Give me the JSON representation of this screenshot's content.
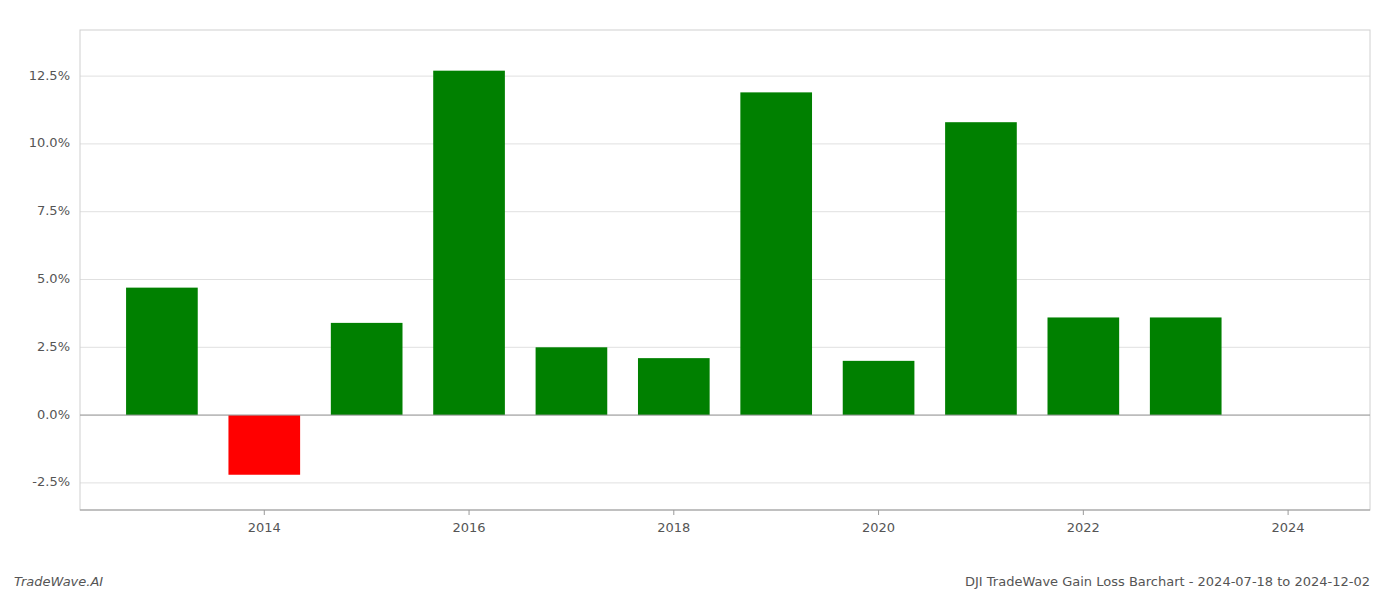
{
  "chart_data": {
    "type": "bar",
    "title": "DJI TradeWave Gain Loss Barchart - 2024-07-18 to 2024-12-02",
    "annotations": [
      "TradeWave.AI"
    ],
    "x": [
      2013,
      2014,
      2015,
      2016,
      2017,
      2018,
      2019,
      2020,
      2021,
      2022,
      2023
    ],
    "values": [
      4.7,
      -2.2,
      3.4,
      12.7,
      2.5,
      2.1,
      11.9,
      2.0,
      10.8,
      3.6,
      3.6
    ],
    "colors": [
      "#008000",
      "#ff0000",
      "#008000",
      "#008000",
      "#008000",
      "#008000",
      "#008000",
      "#008000",
      "#008000",
      "#008000",
      "#008000"
    ],
    "xlim": [
      2012.2,
      2024.8
    ],
    "xticks": [
      2014,
      2016,
      2018,
      2020,
      2022,
      2024
    ],
    "ylim": [
      -3.5,
      14.2
    ],
    "yticks": [
      {
        "value": -2.5,
        "label": "-2.5%"
      },
      {
        "value": 0.0,
        "label": "0.0%"
      },
      {
        "value": 2.5,
        "label": "2.5%"
      },
      {
        "value": 5.0,
        "label": "5.0%"
      },
      {
        "value": 7.5,
        "label": "7.5%"
      },
      {
        "value": 10.0,
        "label": "10.0%"
      },
      {
        "value": 12.5,
        "label": "12.5%"
      }
    ],
    "grid": true
  }
}
